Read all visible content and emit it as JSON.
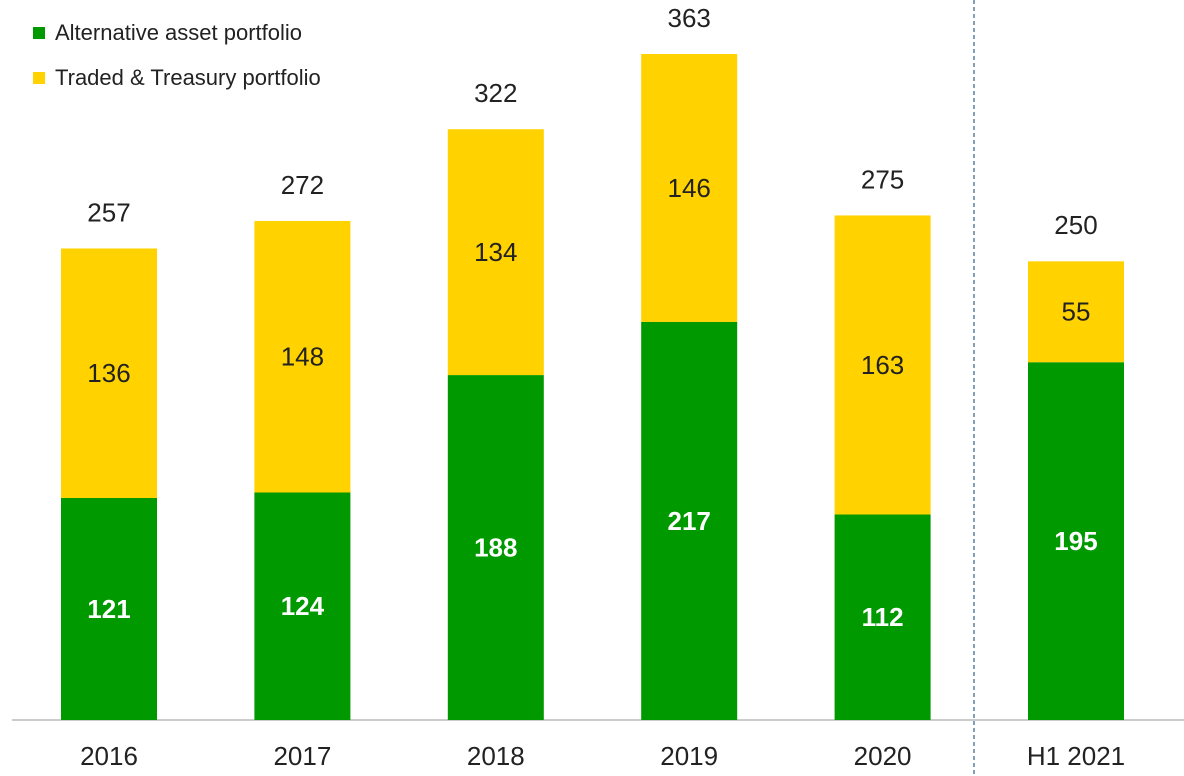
{
  "chart_data": {
    "type": "stacked_bar",
    "categories": [
      "2016",
      "2017",
      "2018",
      "2019",
      "2020",
      "H1 2021"
    ],
    "series": [
      {
        "name": "Alternative asset portfolio",
        "color": "#009900",
        "values": [
          121,
          124,
          188,
          217,
          112,
          195
        ]
      },
      {
        "name": "Traded & Treasury portfolio",
        "color": "#ffd200",
        "values": [
          136,
          148,
          134,
          146,
          163,
          55
        ]
      }
    ],
    "totals": [
      257,
      272,
      322,
      363,
      275,
      250
    ],
    "legend": "top-left"
  }
}
